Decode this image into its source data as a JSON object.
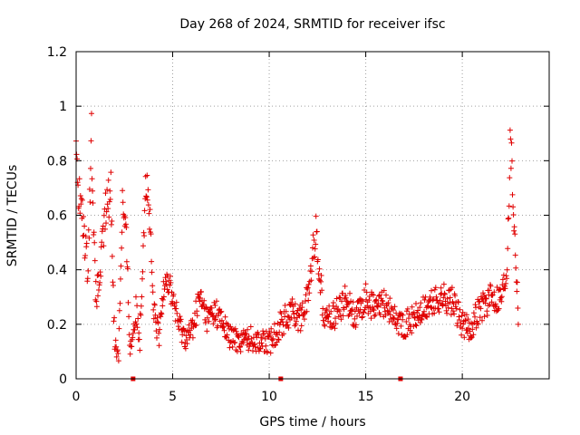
{
  "chart_data": {
    "type": "scatter",
    "title": "Day 268 of 2024, SRMTID for receiver ifsc",
    "xlabel": "GPS time / hours",
    "ylabel": "SRMTID / TECUs",
    "xlim": [
      0,
      24.5
    ],
    "ylim": [
      0,
      1.2
    ],
    "xticks": [
      0,
      5,
      10,
      15,
      20
    ],
    "xtick_labels": [
      "0",
      "5",
      "10",
      "15",
      "20"
    ],
    "yticks": [
      0,
      0.2,
      0.4,
      0.6,
      0.8,
      1,
      1.2
    ],
    "ytick_labels": [
      "0",
      "0.2",
      "0.4",
      "0.6",
      "0.8",
      "1",
      "1.2"
    ],
    "grid": true,
    "marker": "+",
    "color": "#e00000",
    "sample_interval_hours": 0.025,
    "series": [
      {
        "name": "SRMTID",
        "profile_hours": [
          0,
          0.2,
          0.4,
          0.6,
          0.8,
          1.0,
          1.2,
          1.5,
          1.8,
          2.0,
          2.2,
          2.4,
          2.6,
          2.8,
          3.1,
          3.3,
          3.6,
          3.8,
          4.0,
          4.3,
          4.6,
          5.0,
          5.3,
          5.7,
          6.0,
          6.4,
          6.8,
          7.2,
          7.6,
          8.0,
          8.5,
          9.0,
          9.5,
          10.0,
          10.4,
          10.8,
          11.2,
          11.6,
          12.0,
          12.4,
          12.8,
          13.2,
          13.6,
          14.0,
          14.5,
          15.0,
          15.5,
          16.0,
          16.5,
          17.0,
          17.5,
          18.0,
          18.5,
          19.0,
          19.5,
          20.0,
          20.4,
          20.8,
          21.2,
          21.6,
          22.0,
          22.3,
          22.5,
          22.7,
          22.9
        ],
        "profile_values": [
          0.8,
          0.65,
          0.55,
          0.4,
          0.9,
          0.3,
          0.35,
          0.6,
          0.7,
          0.12,
          0.1,
          0.65,
          0.5,
          0.1,
          0.25,
          0.15,
          0.75,
          0.6,
          0.25,
          0.15,
          0.4,
          0.3,
          0.2,
          0.15,
          0.18,
          0.3,
          0.22,
          0.25,
          0.2,
          0.15,
          0.14,
          0.15,
          0.14,
          0.13,
          0.18,
          0.22,
          0.25,
          0.22,
          0.3,
          0.55,
          0.25,
          0.22,
          0.25,
          0.3,
          0.22,
          0.3,
          0.25,
          0.28,
          0.22,
          0.2,
          0.22,
          0.25,
          0.28,
          0.3,
          0.28,
          0.2,
          0.18,
          0.25,
          0.28,
          0.3,
          0.3,
          0.4,
          0.9,
          0.55,
          0.25
        ],
        "spread": 0.07,
        "zero_markers_hours": [
          2.95,
          10.6,
          16.8
        ]
      }
    ]
  }
}
